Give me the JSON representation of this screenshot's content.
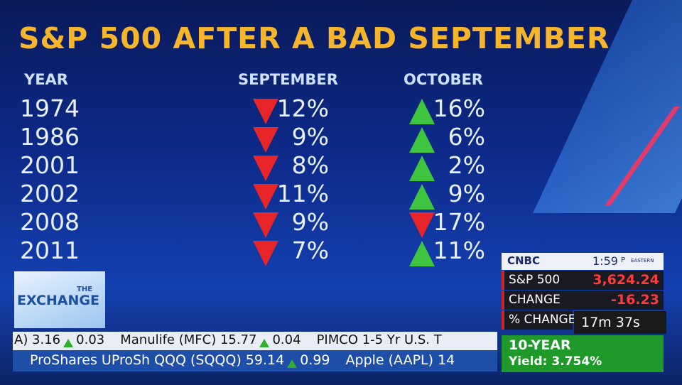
{
  "header": {
    "title": "S&P 500 AFTER A BAD SEPTEMBER"
  },
  "table": {
    "columns": [
      "YEAR",
      "SEPTEMBER",
      "OCTOBER"
    ],
    "rows": [
      {
        "year": "1974",
        "september": {
          "value": "12%",
          "direction": "down"
        },
        "october": {
          "value": "16%",
          "direction": "up"
        }
      },
      {
        "year": "1986",
        "september": {
          "value": "9%",
          "direction": "down"
        },
        "october": {
          "value": "6%",
          "direction": "up"
        }
      },
      {
        "year": "2001",
        "september": {
          "value": "8%",
          "direction": "down"
        },
        "october": {
          "value": "2%",
          "direction": "up"
        }
      },
      {
        "year": "2002",
        "september": {
          "value": "11%",
          "direction": "down"
        },
        "october": {
          "value": "9%",
          "direction": "up"
        }
      },
      {
        "year": "2008",
        "september": {
          "value": "9%",
          "direction": "down"
        },
        "october": {
          "value": "17%",
          "direction": "down"
        }
      },
      {
        "year": "2011",
        "september": {
          "value": "7%",
          "direction": "down"
        },
        "october": {
          "value": "11%",
          "direction": "up"
        }
      }
    ]
  },
  "show": {
    "small": "THE",
    "name": "EXCHANGE"
  },
  "ticker": {
    "top": [
      {
        "text": "A) 3.16",
        "change": "0.03"
      },
      {
        "text": "Manulife (MFC) 15.77",
        "change": "0.04"
      },
      {
        "text": "PIMCO 1-5 Yr U.S. T",
        "change": null
      }
    ],
    "bottom": [
      {
        "text": "ProShares UProSh QQQ (SQQQ) 59.14",
        "change": "0.99"
      },
      {
        "text": "Apple (AAPL) 14",
        "change": null
      }
    ]
  },
  "quote": {
    "brand": "CNBC",
    "time": "1:59",
    "ampm": "P",
    "zone": "EASTERN",
    "rows": [
      {
        "label": "S&P 500",
        "value": "3,624.24"
      },
      {
        "label": "CHANGE",
        "value": "-16.23"
      },
      {
        "label": "% CHANGE",
        "value": null
      }
    ],
    "timer": "17m 37s",
    "bond_title": "10-YEAR",
    "bond_yield": "Yield: 3.754%"
  }
}
